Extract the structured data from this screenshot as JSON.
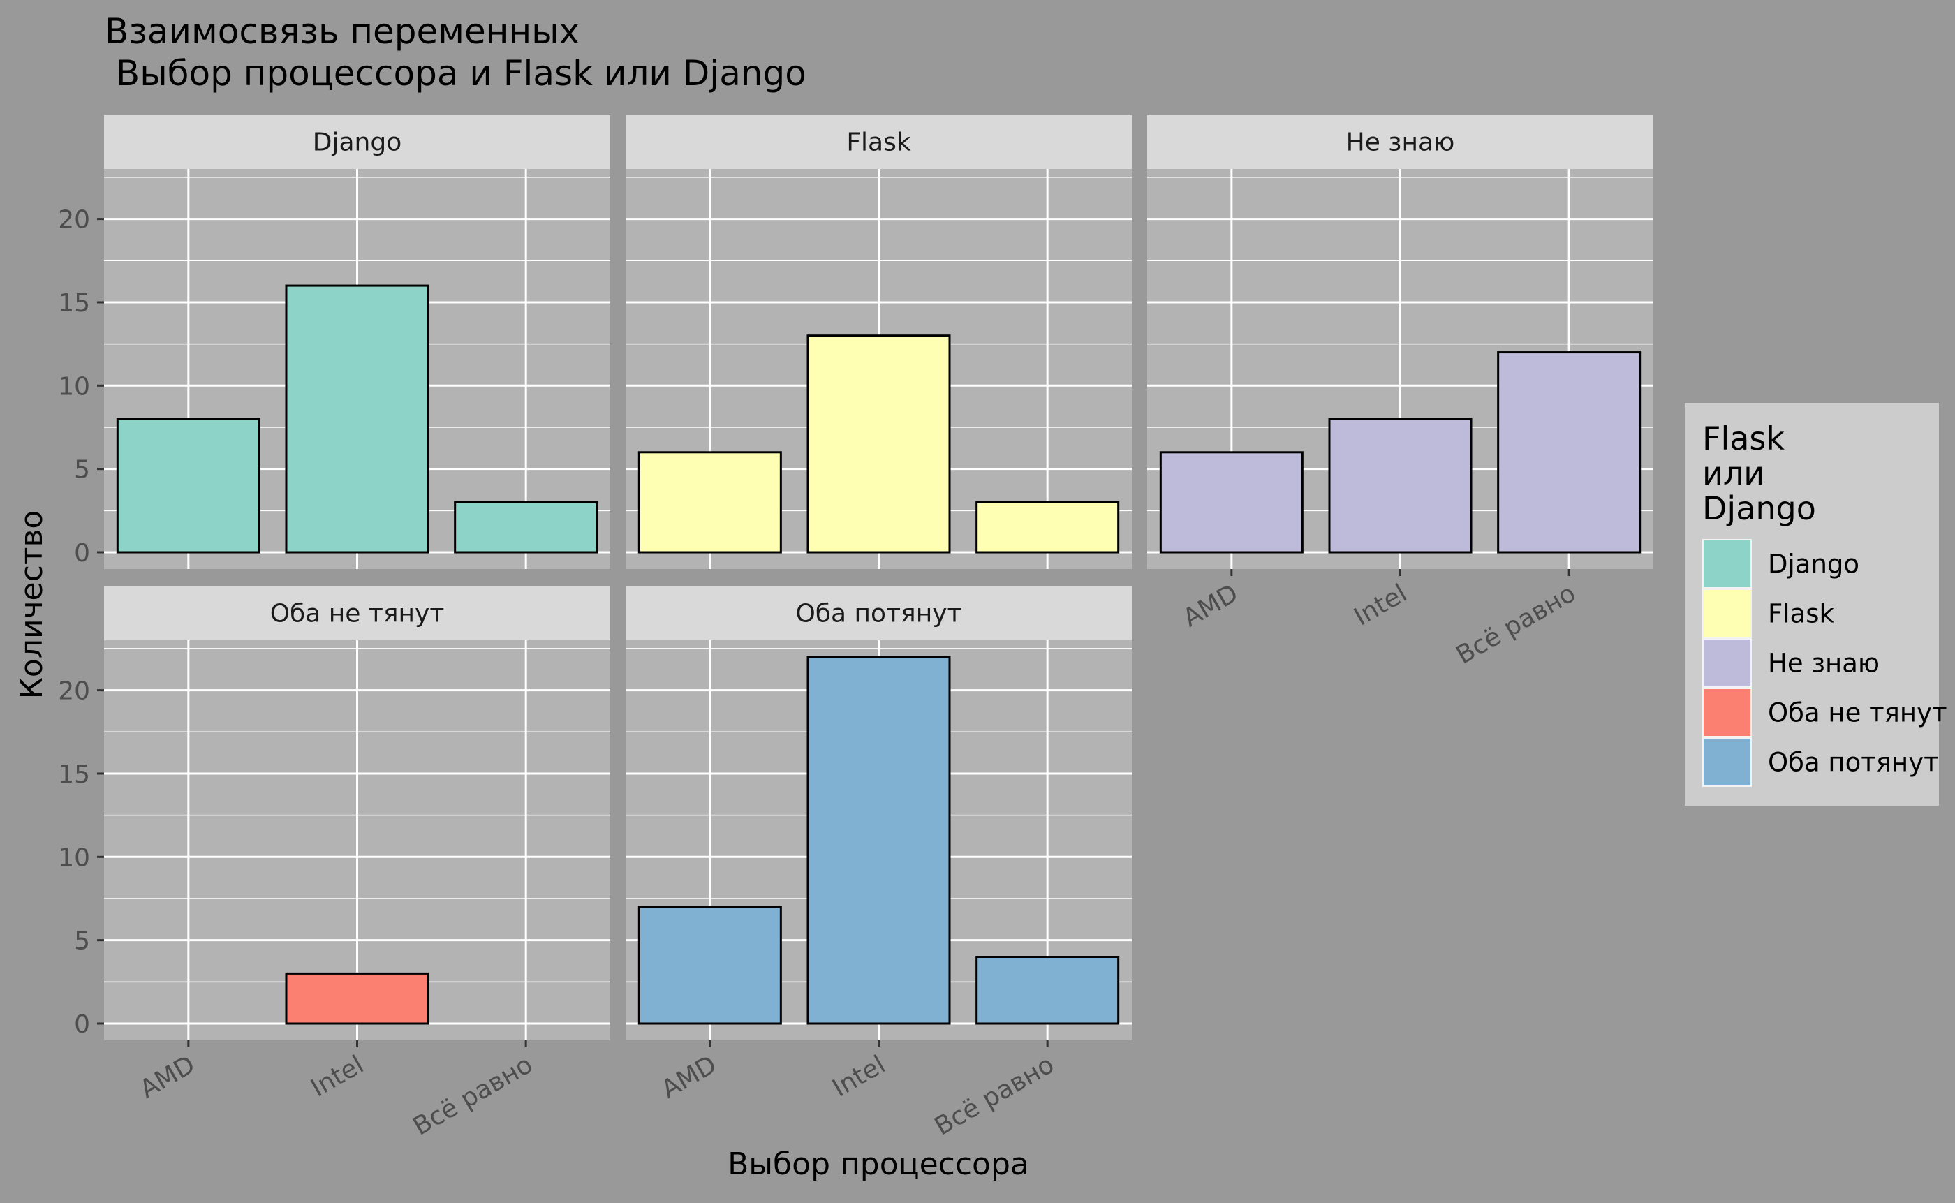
{
  "chart_data": {
    "type": "bar",
    "title": "Взаимосвязь переменных\n Выбор процессора и Flask или Django",
    "xlabel": "Выбор процессора",
    "ylabel": "Количество",
    "ylim": [
      0,
      23
    ],
    "y_ticks": [
      0,
      5,
      10,
      15,
      20
    ],
    "categories": [
      "AMD",
      "Intel",
      "Всё равно"
    ],
    "grid": true,
    "legend": {
      "title": "Flask\nили\nDjango",
      "placement": "right",
      "entries": [
        "Django",
        "Flask",
        "Не знаю",
        "Оба не тянут",
        "Оба потянут"
      ]
    },
    "series": [
      {
        "name": "Django",
        "color": "#8DD3C7",
        "values": [
          8,
          16,
          3
        ]
      },
      {
        "name": "Flask",
        "color": "#FFFFB3",
        "values": [
          6,
          13,
          3
        ]
      },
      {
        "name": "Не знаю",
        "color": "#BEBADA",
        "values": [
          6,
          8,
          12
        ]
      },
      {
        "name": "Оба не тянут",
        "color": "#FB8072",
        "values": [
          0,
          3,
          0
        ]
      },
      {
        "name": "Оба потянут",
        "color": "#80B1D3",
        "values": [
          7,
          22,
          4
        ]
      }
    ]
  },
  "colors": {
    "background": "#999999",
    "panel": "#B3B3B3",
    "strip": "#D9D9D9",
    "legend_box": "#CCCCCC",
    "grid": "#FFFFFF",
    "bar_outline": "#000000",
    "text": "#000000",
    "tick_text": "#4D4D4D"
  }
}
